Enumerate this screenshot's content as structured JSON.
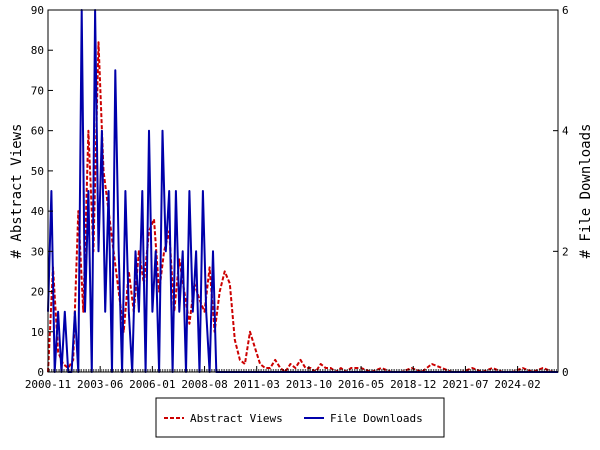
{
  "chart_data": {
    "type": "line",
    "title": "",
    "xlabel": "",
    "ylabel_left": "# Abstract Views",
    "ylabel_right": "# File Downloads",
    "ylim_left": [
      0,
      90
    ],
    "ylim_right": [
      0,
      6
    ],
    "xlim": [
      "2000-11",
      "2026-02"
    ],
    "x_tick_labels": [
      "2000-11",
      "2003-06",
      "2006-01",
      "2008-08",
      "2011-03",
      "2013-10",
      "2016-05",
      "2018-12",
      "2021-07",
      "2024-02"
    ],
    "y_left_ticks": [
      0,
      10,
      20,
      30,
      40,
      50,
      60,
      70,
      80,
      90
    ],
    "y_right_ticks": [
      0,
      2,
      4,
      6
    ],
    "grid": false,
    "legend_position": "bottom-center",
    "colors": {
      "abstract_views": "#cc0000",
      "file_downloads": "#0000aa",
      "axis": "#000000"
    },
    "series": [
      {
        "name": "Abstract Views",
        "axis": "left",
        "style": "dashed",
        "x": [
          "2000-11",
          "2001-02",
          "2001-05",
          "2001-08",
          "2001-11",
          "2002-02",
          "2002-05",
          "2002-08",
          "2002-11",
          "2003-02",
          "2003-05",
          "2003-08",
          "2003-11",
          "2004-02",
          "2004-05",
          "2004-08",
          "2004-11",
          "2005-02",
          "2005-05",
          "2005-08",
          "2005-11",
          "2006-02",
          "2006-05",
          "2006-08",
          "2006-11",
          "2007-02",
          "2007-05",
          "2007-08",
          "2007-11",
          "2008-02",
          "2008-05",
          "2008-08",
          "2008-11",
          "2009-02",
          "2009-05",
          "2009-08",
          "2009-11",
          "2010-02",
          "2010-05",
          "2010-08",
          "2010-11",
          "2011-02",
          "2011-05",
          "2011-08",
          "2011-11",
          "2012-02",
          "2012-05",
          "2012-08",
          "2012-11",
          "2013-02",
          "2013-05",
          "2013-08",
          "2013-11",
          "2014-02",
          "2014-05",
          "2014-08",
          "2014-11",
          "2015-02",
          "2015-05",
          "2015-08",
          "2015-11",
          "2016-05",
          "2016-11",
          "2017-05",
          "2017-11",
          "2018-05",
          "2018-11",
          "2019-05",
          "2019-11",
          "2020-05",
          "2020-11",
          "2021-05",
          "2021-11",
          "2022-05",
          "2022-11",
          "2023-05",
          "2023-11",
          "2024-05",
          "2024-11",
          "2025-05",
          "2025-11"
        ],
        "values": [
          0,
          26,
          5,
          2,
          1,
          3,
          40,
          15,
          60,
          30,
          82,
          50,
          40,
          30,
          20,
          10,
          25,
          15,
          30,
          22,
          35,
          38,
          20,
          30,
          35,
          15,
          28,
          20,
          12,
          22,
          18,
          15,
          26,
          10,
          20,
          25,
          22,
          8,
          3,
          2,
          10,
          6,
          2,
          1,
          1,
          3,
          1,
          0,
          2,
          1,
          3,
          1,
          1,
          0,
          2,
          1,
          1,
          0,
          1,
          0,
          1,
          1,
          0,
          1,
          0,
          0,
          1,
          0,
          2,
          1,
          0,
          0,
          1,
          0,
          1,
          0,
          0,
          1,
          0,
          1,
          0
        ]
      },
      {
        "name": "File Downloads",
        "axis": "right",
        "style": "solid",
        "x": [
          "2000-11",
          "2001-01",
          "2001-03",
          "2001-05",
          "2001-07",
          "2001-09",
          "2001-11",
          "2002-01",
          "2002-03",
          "2002-05",
          "2002-07",
          "2002-09",
          "2002-11",
          "2003-01",
          "2003-03",
          "2003-05",
          "2003-07",
          "2003-09",
          "2003-11",
          "2004-01",
          "2004-03",
          "2004-05",
          "2004-07",
          "2004-09",
          "2004-11",
          "2005-01",
          "2005-03",
          "2005-05",
          "2005-07",
          "2005-09",
          "2005-11",
          "2006-01",
          "2006-03",
          "2006-05",
          "2006-07",
          "2006-09",
          "2006-11",
          "2007-01",
          "2007-03",
          "2007-05",
          "2007-07",
          "2007-09",
          "2007-11",
          "2008-01",
          "2008-03",
          "2008-05",
          "2008-07",
          "2008-09",
          "2008-11",
          "2009-01",
          "2009-03",
          "2009-06",
          "2010-01",
          "2012-01",
          "2015-01",
          "2020-01",
          "2026-02"
        ],
        "values": [
          1,
          3,
          0,
          1,
          0,
          1,
          0,
          0,
          1,
          0,
          6,
          1,
          3,
          0,
          6,
          2,
          4,
          1,
          3,
          0,
          5,
          2,
          0,
          3,
          1,
          0,
          2,
          1,
          3,
          0,
          4,
          1,
          2,
          0,
          4,
          2,
          3,
          0,
          3,
          1,
          2,
          0,
          3,
          1,
          2,
          0,
          3,
          1,
          0,
          2,
          0,
          0,
          0,
          0,
          0,
          0,
          0
        ]
      }
    ]
  }
}
